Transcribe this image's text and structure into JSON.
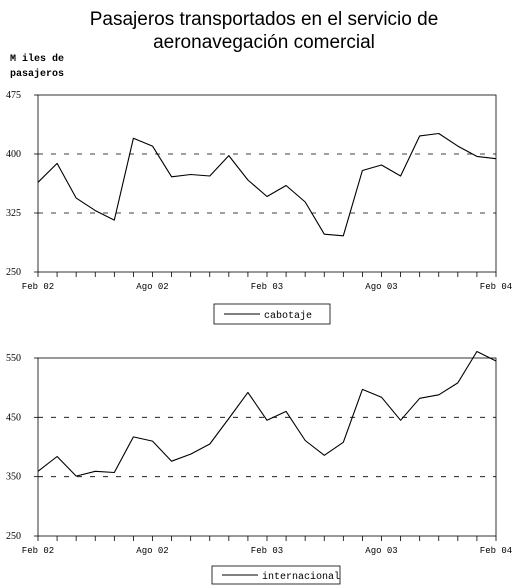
{
  "chart_data": [
    {
      "type": "line",
      "title": "Pasajeros transportados en el servicio de aeronavegación comercial",
      "title_lines": [
        "Pasajeros transportados en el servicio de",
        "aeronavegación comercial"
      ],
      "ylabel_lines": [
        "M iles de",
        "pasajeros"
      ],
      "ylim": [
        250,
        475
      ],
      "yticks": [
        250,
        325,
        400,
        475
      ],
      "grid": "dashed at 325 and 400",
      "x": [
        "Feb 02",
        "Mar 02",
        "Abr 02",
        "May 02",
        "Jun 02",
        "Jul 02",
        "Ago 02",
        "Sep 02",
        "Oct 02",
        "Nov 02",
        "Dic 02",
        "Ene 03",
        "Feb 03",
        "Mar 03",
        "Abr 03",
        "May 03",
        "Jun 03",
        "Jul 03",
        "Ago 03",
        "Sep 03",
        "Oct 03",
        "Nov 03",
        "Dic 03",
        "Ene 04",
        "Feb 04"
      ],
      "xtick_labels": [
        {
          "label": "Feb 02",
          "index": 0
        },
        {
          "label": "Ago 02",
          "index": 6
        },
        {
          "label": "Feb 03",
          "index": 12
        },
        {
          "label": "Ago 03",
          "index": 18
        },
        {
          "label": "Feb 04",
          "index": 24
        }
      ],
      "series": [
        {
          "name": "cabotaje",
          "values": [
            364,
            388,
            344,
            328,
            316,
            420,
            410,
            371,
            374,
            372,
            398,
            367,
            346,
            360,
            339,
            298,
            296,
            379,
            386,
            372,
            423,
            426,
            410,
            397,
            394
          ]
        }
      ],
      "legend": "bottom-center"
    },
    {
      "type": "line",
      "ylim": [
        250,
        550
      ],
      "yticks": [
        250,
        350,
        450,
        550
      ],
      "grid": "dashed at 350 and 450",
      "x": [
        "Feb 02",
        "Mar 02",
        "Abr 02",
        "May 02",
        "Jun 02",
        "Jul 02",
        "Ago 02",
        "Sep 02",
        "Oct 02",
        "Nov 02",
        "Dic 02",
        "Ene 03",
        "Feb 03",
        "Mar 03",
        "Abr 03",
        "May 03",
        "Jun 03",
        "Jul 03",
        "Ago 03",
        "Sep 03",
        "Oct 03",
        "Nov 03",
        "Dic 03",
        "Ene 04",
        "Feb 04"
      ],
      "xtick_labels": [
        {
          "label": "Feb 02",
          "index": 0
        },
        {
          "label": "Ago 02",
          "index": 6
        },
        {
          "label": "Feb 03",
          "index": 12
        },
        {
          "label": "Ago 03",
          "index": 18
        },
        {
          "label": "Feb 04",
          "index": 24
        }
      ],
      "series": [
        {
          "name": "internacional",
          "values": [
            359,
            384,
            351,
            359,
            357,
            417,
            410,
            376,
            388,
            405,
            448,
            492,
            445,
            460,
            411,
            386,
            408,
            497,
            484,
            445,
            482,
            488,
            508,
            561,
            545
          ]
        }
      ],
      "legend": "bottom-center"
    }
  ]
}
